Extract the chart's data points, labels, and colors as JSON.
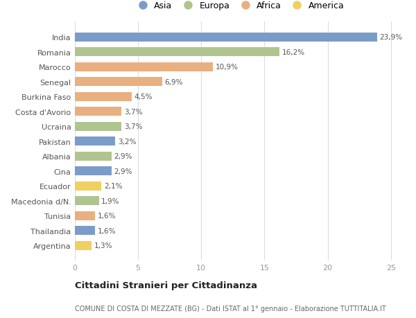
{
  "countries": [
    "India",
    "Romania",
    "Marocco",
    "Senegal",
    "Burkina Faso",
    "Costa d'Avorio",
    "Ucraina",
    "Pakistan",
    "Albania",
    "Cina",
    "Ecuador",
    "Macedonia d/N.",
    "Tunisia",
    "Thailandia",
    "Argentina"
  ],
  "values": [
    23.9,
    16.2,
    10.9,
    6.9,
    4.5,
    3.7,
    3.7,
    3.2,
    2.9,
    2.9,
    2.1,
    1.9,
    1.6,
    1.6,
    1.3
  ],
  "labels": [
    "23,9%",
    "16,2%",
    "10,9%",
    "6,9%",
    "4,5%",
    "3,7%",
    "3,7%",
    "3,2%",
    "2,9%",
    "2,9%",
    "2,1%",
    "1,9%",
    "1,6%",
    "1,6%",
    "1,3%"
  ],
  "continents": [
    "Asia",
    "Europa",
    "Africa",
    "Africa",
    "Africa",
    "Africa",
    "Europa",
    "Asia",
    "Europa",
    "Asia",
    "America",
    "Europa",
    "Africa",
    "Asia",
    "America"
  ],
  "continent_colors": {
    "Asia": "#7b9cc8",
    "Europa": "#b0c490",
    "Africa": "#e8b080",
    "America": "#f0d060"
  },
  "legend_order": [
    "Asia",
    "Europa",
    "Africa",
    "America"
  ],
  "title": "Cittadini Stranieri per Cittadinanza",
  "subtitle": "COMUNE DI COSTA DI MEZZATE (BG) - Dati ISTAT al 1° gennaio - Elaborazione TUTTITALIA.IT",
  "xlim": [
    0,
    26
  ],
  "xticks": [
    0,
    5,
    10,
    15,
    20,
    25
  ],
  "background_color": "#ffffff",
  "bar_height": 0.6,
  "grid_color": "#dddddd"
}
